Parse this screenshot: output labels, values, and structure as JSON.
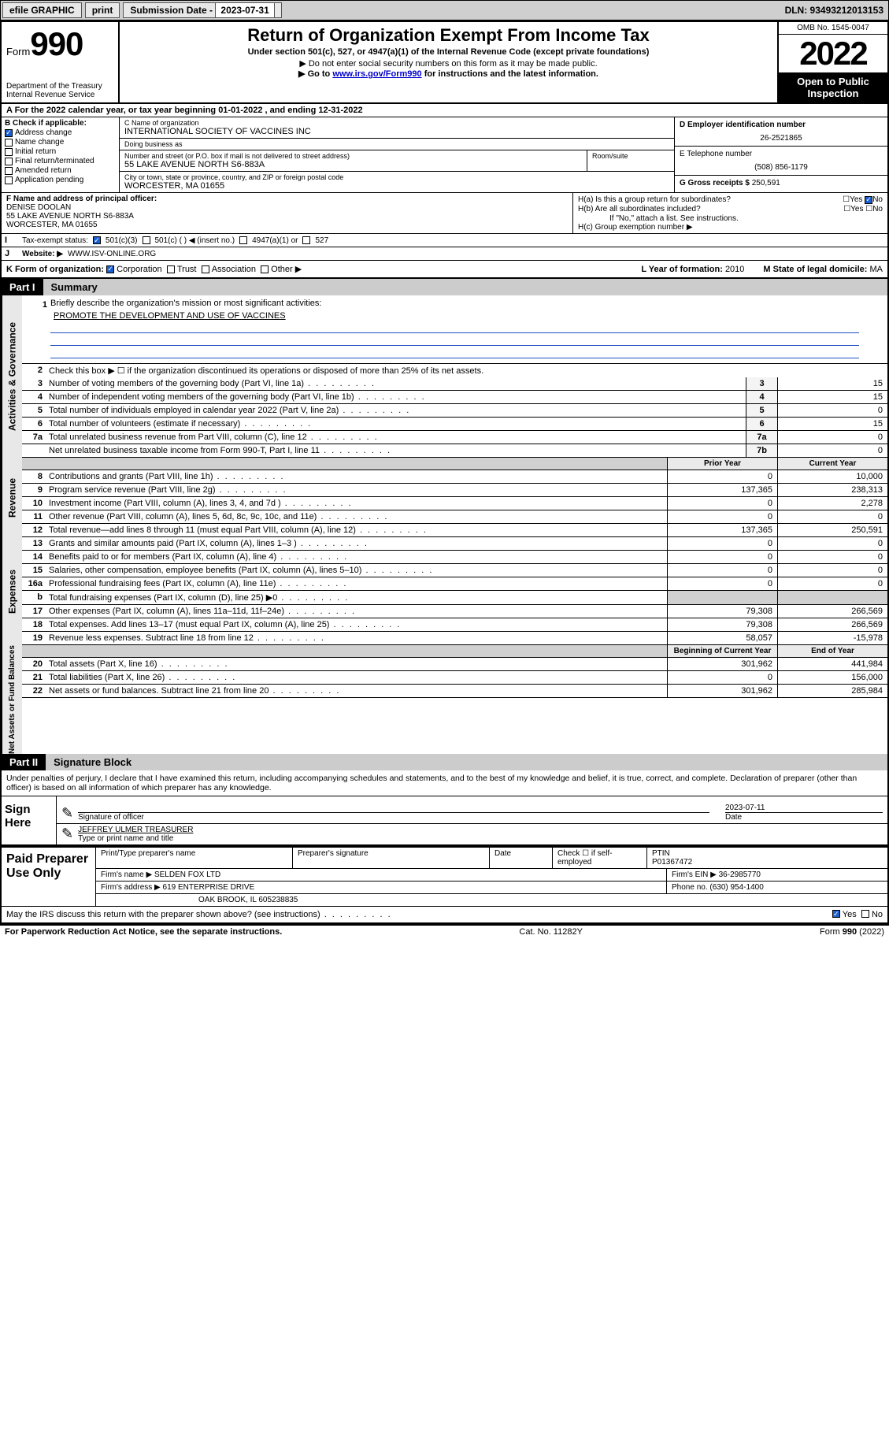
{
  "topbar": {
    "efile": "efile GRAPHIC",
    "print": "print",
    "sub_label": "Submission Date - ",
    "sub_date": "2023-07-31",
    "dln": "DLN: 93493212013153"
  },
  "header": {
    "form_prefix": "Form",
    "form_num": "990",
    "dept": "Department of the Treasury\nInternal Revenue Service",
    "title": "Return of Organization Exempt From Income Tax",
    "subtitle": "Under section 501(c), 527, or 4947(a)(1) of the Internal Revenue Code (except private foundations)",
    "note1": "▶ Do not enter social security numbers on this form as it may be made public.",
    "note2_pre": "▶ Go to ",
    "note2_link": "www.irs.gov/Form990",
    "note2_post": " for instructions and the latest information.",
    "omb": "OMB No. 1545-0047",
    "year": "2022",
    "open_pub": "Open to Public Inspection"
  },
  "row_a": "A For the 2022 calendar year, or tax year beginning 01-01-2022   , and ending 12-31-2022",
  "box_b": {
    "label": "B Check if applicable:",
    "items": [
      {
        "txt": "Address change",
        "checked": true
      },
      {
        "txt": "Name change",
        "checked": false
      },
      {
        "txt": "Initial return",
        "checked": false
      },
      {
        "txt": "Final return/terminated",
        "checked": false
      },
      {
        "txt": "Amended return",
        "checked": false
      },
      {
        "txt": "Application pending",
        "checked": false
      }
    ]
  },
  "box_c": {
    "name_lbl": "C Name of organization",
    "name": "INTERNATIONAL SOCIETY OF VACCINES INC",
    "dba_lbl": "Doing business as",
    "dba": "",
    "addr_lbl": "Number and street (or P.O. box if mail is not delivered to street address)",
    "room_lbl": "Room/suite",
    "addr": "55 LAKE AVENUE NORTH S6-883A",
    "city_lbl": "City or town, state or province, country, and ZIP or foreign postal code",
    "city": "WORCESTER, MA  01655"
  },
  "box_d": {
    "ein_lbl": "D Employer identification number",
    "ein": "26-2521865",
    "tel_lbl": "E Telephone number",
    "tel": "(508) 856-1179",
    "gross_lbl": "G Gross receipts $ ",
    "gross": "250,591"
  },
  "box_f": {
    "lbl": "F Name and address of principal officer:",
    "name": "DENISE DOOLAN",
    "addr1": "55 LAKE AVENUE NORTH S6-883A",
    "addr2": "WORCESTER, MA  01655"
  },
  "box_h": {
    "a_lbl": "H(a)  Is this a group return for subordinates?",
    "a_yes": "Yes",
    "a_no": "No",
    "b_lbl": "H(b)  Are all subordinates included?",
    "b_note": "If \"No,\" attach a list. See instructions.",
    "c_lbl": "H(c)  Group exemption number ▶"
  },
  "row_i": {
    "lbl": "Tax-exempt status:",
    "o1": "501(c)(3)",
    "o2": "501(c) (   ) ◀ (insert no.)",
    "o3": "4947(a)(1) or",
    "o4": "527"
  },
  "row_j": {
    "lbl": "Website: ▶",
    "val": "WWW.ISV-ONLINE.ORG"
  },
  "row_k": {
    "lbl": "K Form of organization:",
    "o1": "Corporation",
    "o2": "Trust",
    "o3": "Association",
    "o4": "Other ▶",
    "l_lbl": "L Year of formation: ",
    "l_val": "2010",
    "m_lbl": "M State of legal domicile: ",
    "m_val": "MA"
  },
  "part1": {
    "hdr_pt": "Part I",
    "hdr_name": "Summary",
    "tab1": "Activities & Governance",
    "tab2": "Revenue",
    "tab3": "Expenses",
    "tab4": "Net Assets or Fund Balances",
    "l1_lbl": "Briefly describe the organization's mission or most significant activities:",
    "l1_val": "PROMOTE THE DEVELOPMENT AND USE OF VACCINES",
    "l2": "Check this box ▶ ☐  if the organization discontinued its operations or disposed of more than 25% of its net assets.",
    "lines_gov": [
      {
        "n": "3",
        "t": "Number of voting members of the governing body (Part VI, line 1a)",
        "b": "3",
        "v": "15"
      },
      {
        "n": "4",
        "t": "Number of independent voting members of the governing body (Part VI, line 1b)",
        "b": "4",
        "v": "15"
      },
      {
        "n": "5",
        "t": "Total number of individuals employed in calendar year 2022 (Part V, line 2a)",
        "b": "5",
        "v": "0"
      },
      {
        "n": "6",
        "t": "Total number of volunteers (estimate if necessary)",
        "b": "6",
        "v": "15"
      },
      {
        "n": "7a",
        "t": "Total unrelated business revenue from Part VIII, column (C), line 12",
        "b": "7a",
        "v": "0"
      },
      {
        "n": "",
        "t": "Net unrelated business taxable income from Form 990-T, Part I, line 11",
        "b": "7b",
        "v": "0"
      }
    ],
    "colhdr_prior": "Prior Year",
    "colhdr_curr": "Current Year",
    "lines_rev": [
      {
        "n": "8",
        "t": "Contributions and grants (Part VIII, line 1h)",
        "p": "0",
        "c": "10,000"
      },
      {
        "n": "9",
        "t": "Program service revenue (Part VIII, line 2g)",
        "p": "137,365",
        "c": "238,313"
      },
      {
        "n": "10",
        "t": "Investment income (Part VIII, column (A), lines 3, 4, and 7d )",
        "p": "0",
        "c": "2,278"
      },
      {
        "n": "11",
        "t": "Other revenue (Part VIII, column (A), lines 5, 6d, 8c, 9c, 10c, and 11e)",
        "p": "0",
        "c": "0"
      },
      {
        "n": "12",
        "t": "Total revenue—add lines 8 through 11 (must equal Part VIII, column (A), line 12)",
        "p": "137,365",
        "c": "250,591"
      }
    ],
    "lines_exp": [
      {
        "n": "13",
        "t": "Grants and similar amounts paid (Part IX, column (A), lines 1–3 )",
        "p": "0",
        "c": "0"
      },
      {
        "n": "14",
        "t": "Benefits paid to or for members (Part IX, column (A), line 4)",
        "p": "0",
        "c": "0"
      },
      {
        "n": "15",
        "t": "Salaries, other compensation, employee benefits (Part IX, column (A), lines 5–10)",
        "p": "0",
        "c": "0"
      },
      {
        "n": "16a",
        "t": "Professional fundraising fees (Part IX, column (A), line 11e)",
        "p": "0",
        "c": "0"
      },
      {
        "n": "b",
        "t": "Total fundraising expenses (Part IX, column (D), line 25) ▶0",
        "p": "",
        "c": "",
        "grey": true
      },
      {
        "n": "17",
        "t": "Other expenses (Part IX, column (A), lines 11a–11d, 11f–24e)",
        "p": "79,308",
        "c": "266,569"
      },
      {
        "n": "18",
        "t": "Total expenses. Add lines 13–17 (must equal Part IX, column (A), line 25)",
        "p": "79,308",
        "c": "266,569"
      },
      {
        "n": "19",
        "t": "Revenue less expenses. Subtract line 18 from line 12",
        "p": "58,057",
        "c": "-15,978"
      }
    ],
    "colhdr_beg": "Beginning of Current Year",
    "colhdr_end": "End of Year",
    "lines_net": [
      {
        "n": "20",
        "t": "Total assets (Part X, line 16)",
        "p": "301,962",
        "c": "441,984"
      },
      {
        "n": "21",
        "t": "Total liabilities (Part X, line 26)",
        "p": "0",
        "c": "156,000"
      },
      {
        "n": "22",
        "t": "Net assets or fund balances. Subtract line 21 from line 20",
        "p": "301,962",
        "c": "285,984"
      }
    ]
  },
  "part2": {
    "hdr_pt": "Part II",
    "hdr_name": "Signature Block",
    "intro": "Under penalties of perjury, I declare that I have examined this return, including accompanying schedules and statements, and to the best of my knowledge and belief, it is true, correct, and complete. Declaration of preparer (other than officer) is based on all information of which preparer has any knowledge.",
    "sign_here": "Sign Here",
    "sig_of": "Signature of officer",
    "date_lbl": "Date",
    "date": "2023-07-11",
    "name_title": "JEFFREY ULMER  TREASURER",
    "name_title_lbl": "Type or print name and title",
    "paid": "Paid Preparer Use Only",
    "pp_cols": [
      "Print/Type preparer's name",
      "Preparer's signature",
      "Date"
    ],
    "pp_check": "Check ☐ if self-employed",
    "ptin_lbl": "PTIN",
    "ptin": "P01367472",
    "firm_name_lbl": "Firm's name   ▶ ",
    "firm_name": "SELDEN FOX LTD",
    "firm_ein_lbl": "Firm's EIN ▶ ",
    "firm_ein": "36-2985770",
    "firm_addr_lbl": "Firm's address ▶ ",
    "firm_addr1": "619 ENTERPRISE DRIVE",
    "firm_addr2": "OAK BROOK, IL  605238835",
    "phone_lbl": "Phone no. ",
    "phone": "(630) 954-1400",
    "discuss": "May the IRS discuss this return with the preparer shown above? (see instructions)",
    "d_yes": "Yes",
    "d_no": "No"
  },
  "footer": {
    "pra": "For Paperwork Reduction Act Notice, see the separate instructions.",
    "cat": "Cat. No. 11282Y",
    "form": "Form 990 (2022)"
  }
}
